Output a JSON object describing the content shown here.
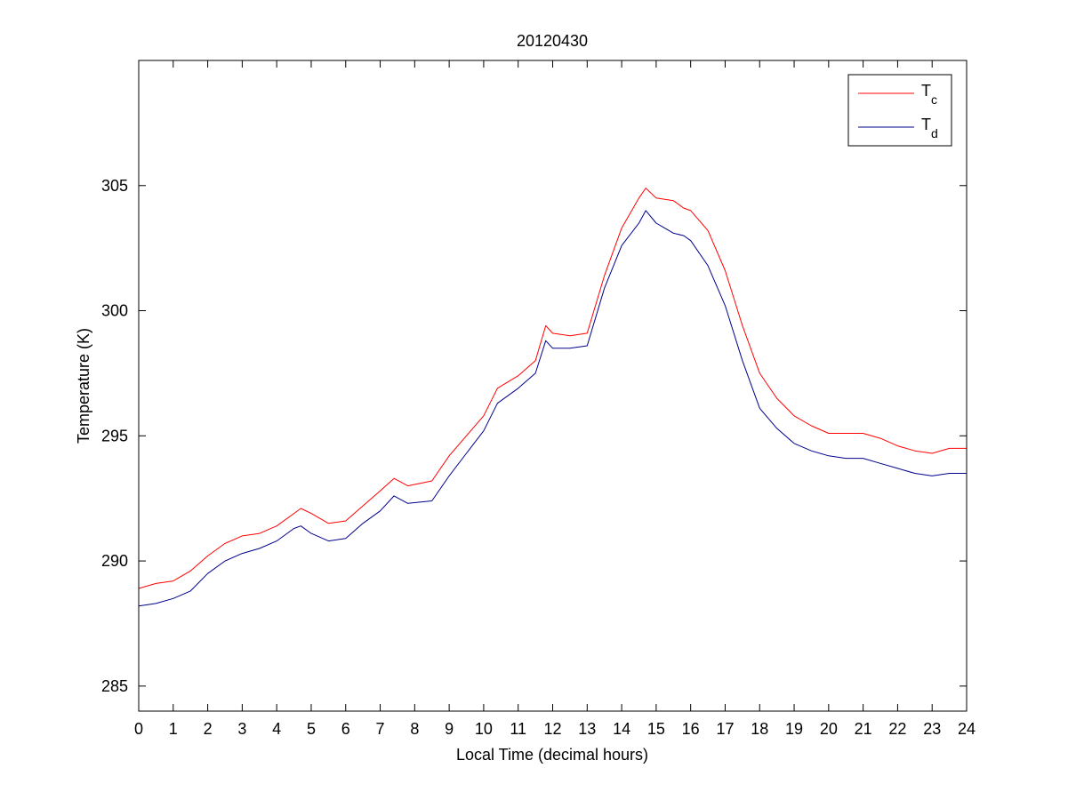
{
  "chart_data": {
    "type": "line",
    "title": "20120430",
    "xlabel": "Local Time (decimal hours)",
    "ylabel": "Temperature (K)",
    "xlim": [
      0,
      24
    ],
    "ylim": [
      284,
      310
    ],
    "xticks": [
      0,
      1,
      2,
      3,
      4,
      5,
      6,
      7,
      8,
      9,
      10,
      11,
      12,
      13,
      14,
      15,
      16,
      17,
      18,
      19,
      20,
      21,
      22,
      23,
      24
    ],
    "yticks": [
      285,
      290,
      295,
      300,
      305
    ],
    "grid": false,
    "legend_position": "top-right",
    "series": [
      {
        "name": "T",
        "subscript": "c",
        "color": "#ff0000",
        "points": [
          [
            0,
            288.9
          ],
          [
            0.5,
            289.1
          ],
          [
            1,
            289.2
          ],
          [
            1.5,
            289.6
          ],
          [
            2,
            290.2
          ],
          [
            2.5,
            290.7
          ],
          [
            3,
            291.0
          ],
          [
            3.5,
            291.1
          ],
          [
            4,
            291.4
          ],
          [
            4.5,
            291.9
          ],
          [
            4.7,
            292.1
          ],
          [
            5,
            291.9
          ],
          [
            5.5,
            291.5
          ],
          [
            6,
            291.6
          ],
          [
            6.5,
            292.2
          ],
          [
            7,
            292.8
          ],
          [
            7.4,
            293.3
          ],
          [
            7.8,
            293.0
          ],
          [
            8.5,
            293.2
          ],
          [
            9,
            294.2
          ],
          [
            9.5,
            295.0
          ],
          [
            10,
            295.8
          ],
          [
            10.4,
            296.9
          ],
          [
            11,
            297.4
          ],
          [
            11.5,
            298.0
          ],
          [
            11.8,
            299.4
          ],
          [
            12,
            299.1
          ],
          [
            12.5,
            299.0
          ],
          [
            13,
            299.1
          ],
          [
            13.5,
            301.4
          ],
          [
            14,
            303.3
          ],
          [
            14.5,
            304.5
          ],
          [
            14.7,
            304.9
          ],
          [
            15,
            304.5
          ],
          [
            15.5,
            304.4
          ],
          [
            15.8,
            304.1
          ],
          [
            16,
            304.0
          ],
          [
            16.5,
            303.2
          ],
          [
            17,
            301.6
          ],
          [
            17.5,
            299.4
          ],
          [
            18,
            297.5
          ],
          [
            18.5,
            296.5
          ],
          [
            19,
            295.8
          ],
          [
            19.5,
            295.4
          ],
          [
            20,
            295.1
          ],
          [
            20.5,
            295.1
          ],
          [
            21,
            295.1
          ],
          [
            21.5,
            294.9
          ],
          [
            22,
            294.6
          ],
          [
            22.5,
            294.4
          ],
          [
            23,
            294.3
          ],
          [
            23.5,
            294.5
          ],
          [
            24,
            294.5
          ]
        ]
      },
      {
        "name": "T",
        "subscript": "d",
        "color": "#00008b",
        "points": [
          [
            0,
            288.2
          ],
          [
            0.5,
            288.3
          ],
          [
            1,
            288.5
          ],
          [
            1.5,
            288.8
          ],
          [
            2,
            289.5
          ],
          [
            2.5,
            290.0
          ],
          [
            3,
            290.3
          ],
          [
            3.5,
            290.5
          ],
          [
            4,
            290.8
          ],
          [
            4.5,
            291.3
          ],
          [
            4.7,
            291.4
          ],
          [
            5,
            291.1
          ],
          [
            5.5,
            290.8
          ],
          [
            6,
            290.9
          ],
          [
            6.5,
            291.5
          ],
          [
            7,
            292.0
          ],
          [
            7.4,
            292.6
          ],
          [
            7.8,
            292.3
          ],
          [
            8.5,
            292.4
          ],
          [
            9,
            293.4
          ],
          [
            9.5,
            294.3
          ],
          [
            10,
            295.2
          ],
          [
            10.4,
            296.3
          ],
          [
            11,
            296.9
          ],
          [
            11.5,
            297.5
          ],
          [
            11.8,
            298.8
          ],
          [
            12,
            298.5
          ],
          [
            12.5,
            298.5
          ],
          [
            13,
            298.6
          ],
          [
            13.5,
            300.9
          ],
          [
            14,
            302.6
          ],
          [
            14.5,
            303.5
          ],
          [
            14.7,
            304.0
          ],
          [
            15,
            303.5
          ],
          [
            15.5,
            303.1
          ],
          [
            15.8,
            303.0
          ],
          [
            16,
            302.8
          ],
          [
            16.5,
            301.8
          ],
          [
            17,
            300.2
          ],
          [
            17.5,
            298.0
          ],
          [
            18,
            296.1
          ],
          [
            18.5,
            295.3
          ],
          [
            19,
            294.7
          ],
          [
            19.5,
            294.4
          ],
          [
            20,
            294.2
          ],
          [
            20.5,
            294.1
          ],
          [
            21,
            294.1
          ],
          [
            21.5,
            293.9
          ],
          [
            22,
            293.7
          ],
          [
            22.5,
            293.5
          ],
          [
            23,
            293.4
          ],
          [
            23.5,
            293.5
          ],
          [
            24,
            293.5
          ]
        ]
      }
    ]
  }
}
